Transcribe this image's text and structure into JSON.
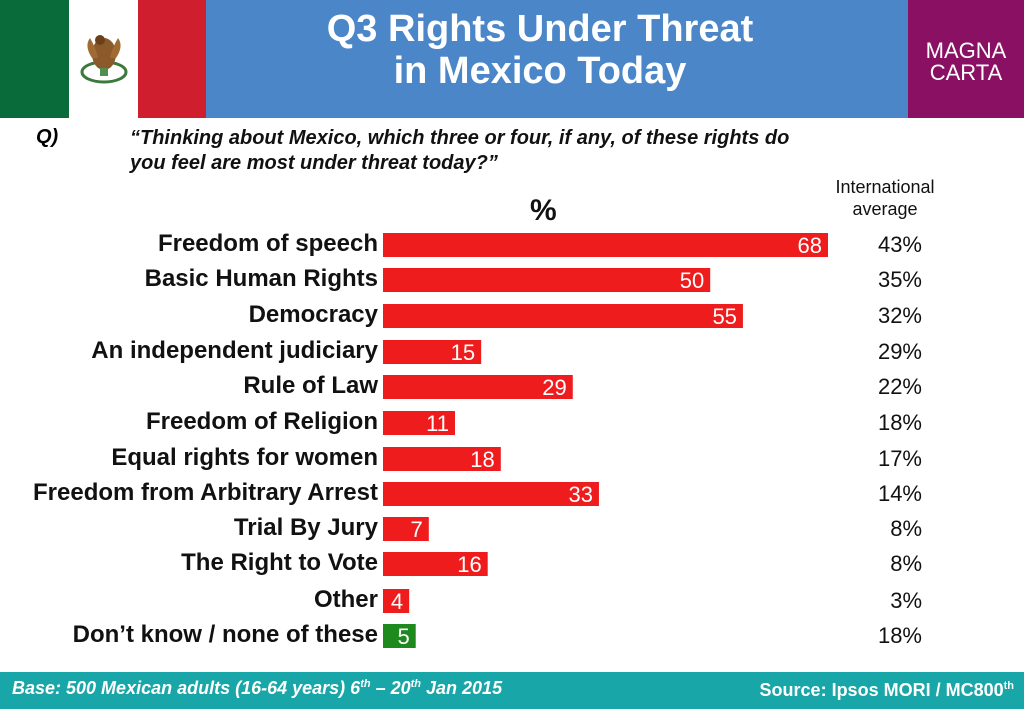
{
  "header": {
    "title_line1": "Q3 Rights Under Threat",
    "title_line2": "in Mexico Today",
    "logo_line1": "MAGNA",
    "logo_line2": "CARTA",
    "header_color": "#4a86c8",
    "logo_color": "#8a1064"
  },
  "question": {
    "label": "Q)",
    "line1": "“Thinking about Mexico, which three or four, if any, of these rights do",
    "line2": "you feel are most under threat today?”"
  },
  "intl_header": {
    "line1": "International",
    "line2": "average"
  },
  "percent_header": "%",
  "chart_data": {
    "type": "bar",
    "orientation": "horizontal",
    "categories": [
      "Freedom of speech",
      "Basic Human Rights",
      "Democracy",
      "An independent judiciary",
      "Rule of Law",
      "Freedom of Religion",
      "Equal rights for women",
      "Freedom from Arbitrary Arrest",
      "Trial By Jury",
      "The Right to Vote",
      "Other",
      "Don’t know / none of these"
    ],
    "values": [
      68,
      50,
      55,
      15,
      29,
      11,
      18,
      33,
      7,
      16,
      4,
      5
    ],
    "value_labels": [
      "68",
      "50",
      "55",
      "15",
      "29",
      "11",
      "18",
      "33",
      "7",
      "16",
      "4",
      "5"
    ],
    "bar_colors": [
      "#ee1c1c",
      "#ee1c1c",
      "#ee1c1c",
      "#ee1c1c",
      "#ee1c1c",
      "#ee1c1c",
      "#ee1c1c",
      "#ee1c1c",
      "#ee1c1c",
      "#ee1c1c",
      "#ee1c1c",
      "#1e8a1e"
    ],
    "international_average": [
      "43%",
      "35%",
      "32%",
      "29%",
      "22%",
      "18%",
      "17%",
      "14%",
      "8%",
      "8%",
      "3%",
      "18%"
    ],
    "xlim": [
      0,
      70
    ],
    "grid": false
  },
  "footer": {
    "base_text": "Base: 500 Mexican adults (16-64 years) 6",
    "base_sup1": "th",
    "base_mid": " – 20",
    "base_sup2": "th",
    "base_end": " Jan 2015",
    "source_text": "Source: Ipsos MORI / MC800",
    "source_sup": "th",
    "footer_color": "#19a6a8"
  }
}
